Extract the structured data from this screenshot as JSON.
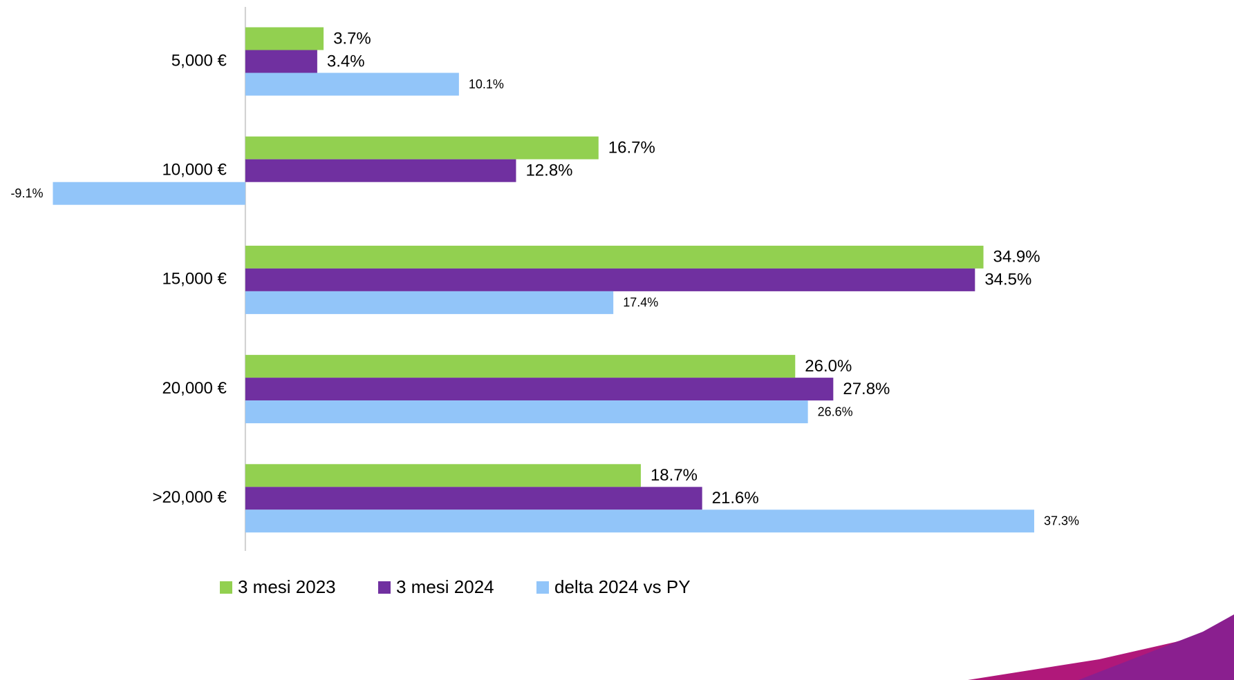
{
  "chart_data": {
    "type": "bar",
    "orientation": "horizontal",
    "categories": [
      "5,000 €",
      "10,000 €",
      "15,000 €",
      "20,000 €",
      ">20,000 €"
    ],
    "xlim": [
      -11.6,
      40.7
    ],
    "series": [
      {
        "name": "3 mesi 2023",
        "color": "#92d050",
        "values": [
          3.7,
          16.7,
          34.9,
          26.0,
          18.7
        ],
        "value_labels": [
          "3.7%",
          "16.7%",
          "34.9%",
          "26.0%",
          "18.7%"
        ]
      },
      {
        "name": "3 mesi 2024",
        "color": "#7030a0",
        "values": [
          3.4,
          12.8,
          34.5,
          27.8,
          21.6
        ],
        "value_labels": [
          "3.4%",
          "12.8%",
          "34.5%",
          "27.8%",
          "21.6%"
        ]
      },
      {
        "name": "delta 2024 vs PY",
        "color": "#92c5f9",
        "values": [
          10.1,
          -9.1,
          17.4,
          26.6,
          37.3
        ],
        "value_labels": [
          "10.1%",
          "-9.1%",
          "17.4%",
          "26.6%",
          "37.3%"
        ]
      }
    ]
  }
}
